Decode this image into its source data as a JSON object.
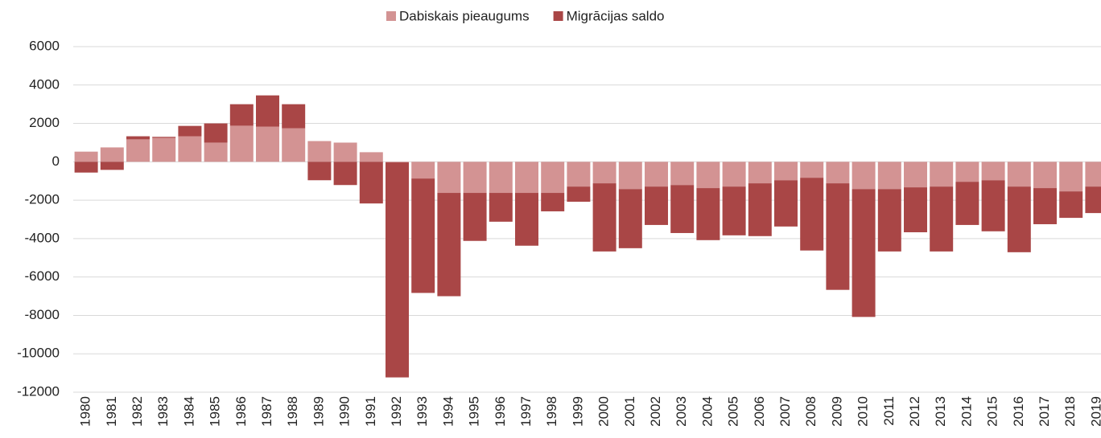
{
  "chart_data": {
    "type": "stacked_bar",
    "categories": [
      "1980",
      "1981",
      "1982",
      "1983",
      "1984",
      "1985",
      "1986",
      "1987",
      "1988",
      "1989",
      "1990",
      "1991",
      "1992",
      "1993",
      "1994",
      "1995",
      "1996",
      "1997",
      "1998",
      "1999",
      "2000",
      "2001",
      "2002",
      "2003",
      "2004",
      "2005",
      "2006",
      "2007",
      "2008",
      "2009",
      "2010",
      "2011",
      "2012",
      "2013",
      "2014",
      "2015",
      "2016",
      "2017",
      "2018",
      "2019"
    ],
    "series": [
      {
        "name": "Dabiskais pieaugums",
        "color": "#d39393",
        "values": [
          530,
          750,
          1170,
          1250,
          1330,
          1000,
          1880,
          1830,
          1750,
          1080,
          1000,
          500,
          -30,
          -870,
          -1620,
          -1620,
          -1620,
          -1620,
          -1620,
          -1290,
          -1120,
          -1420,
          -1290,
          -1210,
          -1370,
          -1290,
          -1120,
          -960,
          -830,
          -1120,
          -1420,
          -1420,
          -1330,
          -1290,
          -1040,
          -960,
          -1290,
          -1370,
          -1540,
          -1290
        ]
      },
      {
        "name": "Migrācijas saldo",
        "color": "#a94646",
        "values": [
          -560,
          -420,
          160,
          50,
          540,
          1000,
          1120,
          1630,
          1250,
          -960,
          -1210,
          -2170,
          -11200,
          -5960,
          -5380,
          -2500,
          -1500,
          -2750,
          -960,
          -790,
          -3550,
          -3080,
          -2000,
          -2500,
          -2710,
          -2540,
          -2750,
          -2410,
          -3790,
          -5550,
          -6660,
          -3250,
          -2340,
          -3380,
          -2250,
          -2660,
          -3420,
          -1880,
          -1380,
          -1380
        ]
      }
    ],
    "ylim": [
      -12000,
      6000
    ],
    "yticks": [
      -12000,
      -10000,
      -8000,
      -6000,
      -4000,
      -2000,
      0,
      2000,
      4000,
      6000
    ],
    "grid": true,
    "legend": "top"
  }
}
